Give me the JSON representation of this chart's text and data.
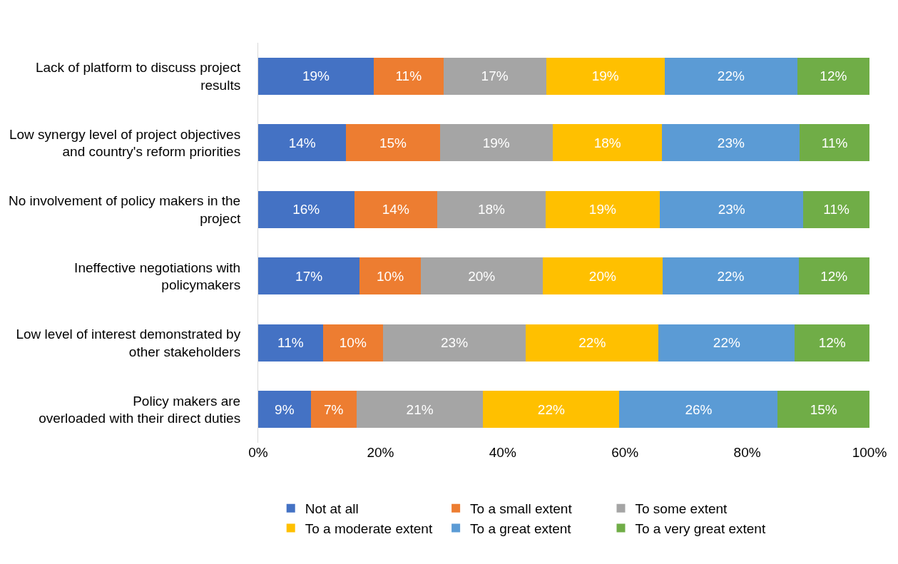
{
  "chart_data": {
    "type": "bar",
    "orientation": "horizontal",
    "stacked": true,
    "categories": [
      "Lack of platform to discuss project\nresults",
      "Low synergy level of project objectives\nand country's reform priorities",
      "No involvement of policy makers in the\nproject",
      "Ineffective negotiations with\npolicymakers",
      "Low level of interest demonstrated by\nother stakeholders",
      "Policy makers are\noverloaded with their direct duties"
    ],
    "series": [
      {
        "name": "Not at all",
        "color": "#4472c4",
        "values": [
          18.9,
          14.4,
          15.7,
          16.6,
          10.6,
          8.6
        ],
        "value_labels": [
          "19%",
          "14%",
          "16%",
          "17%",
          "11%",
          "9%"
        ]
      },
      {
        "name": "To a small extent",
        "color": "#ed7d31",
        "values": [
          11.4,
          15.3,
          13.6,
          10.0,
          9.8,
          7.5
        ],
        "value_labels": [
          "11%",
          "15%",
          "14%",
          "10%",
          "10%",
          "7%"
        ]
      },
      {
        "name": "To some extent",
        "color": "#a5a5a5",
        "values": [
          16.8,
          18.5,
          17.7,
          19.9,
          23.4,
          20.7
        ],
        "value_labels": [
          "17%",
          "19%",
          "18%",
          "20%",
          "23%",
          "21%"
        ]
      },
      {
        "name": "To a moderate extent",
        "color": "#ffc000",
        "values": [
          19.4,
          17.9,
          18.7,
          19.7,
          21.7,
          22.3
        ],
        "value_labels": [
          "19%",
          "18%",
          "19%",
          "20%",
          "22%",
          "22%"
        ]
      },
      {
        "name": "To a great extent",
        "color": "#5b9bd5",
        "values": [
          21.7,
          22.5,
          23.5,
          22.2,
          22.3,
          25.9
        ],
        "value_labels": [
          "22%",
          "23%",
          "23%",
          "22%",
          "22%",
          "26%"
        ]
      },
      {
        "name": "To a very great extent",
        "color": "#70ad47",
        "values": [
          11.8,
          11.4,
          10.8,
          11.6,
          12.2,
          15.0
        ],
        "value_labels": [
          "12%",
          "11%",
          "11%",
          "12%",
          "12%",
          "15%"
        ]
      }
    ],
    "xlim": [
      0,
      100
    ],
    "xticks": [
      {
        "value": 0,
        "label": "0%"
      },
      {
        "value": 20,
        "label": "20%"
      },
      {
        "value": 40,
        "label": "40%"
      },
      {
        "value": 60,
        "label": "60%"
      },
      {
        "value": 80,
        "label": "80%"
      },
      {
        "value": 100,
        "label": "100%"
      }
    ],
    "legend": "bottom"
  }
}
